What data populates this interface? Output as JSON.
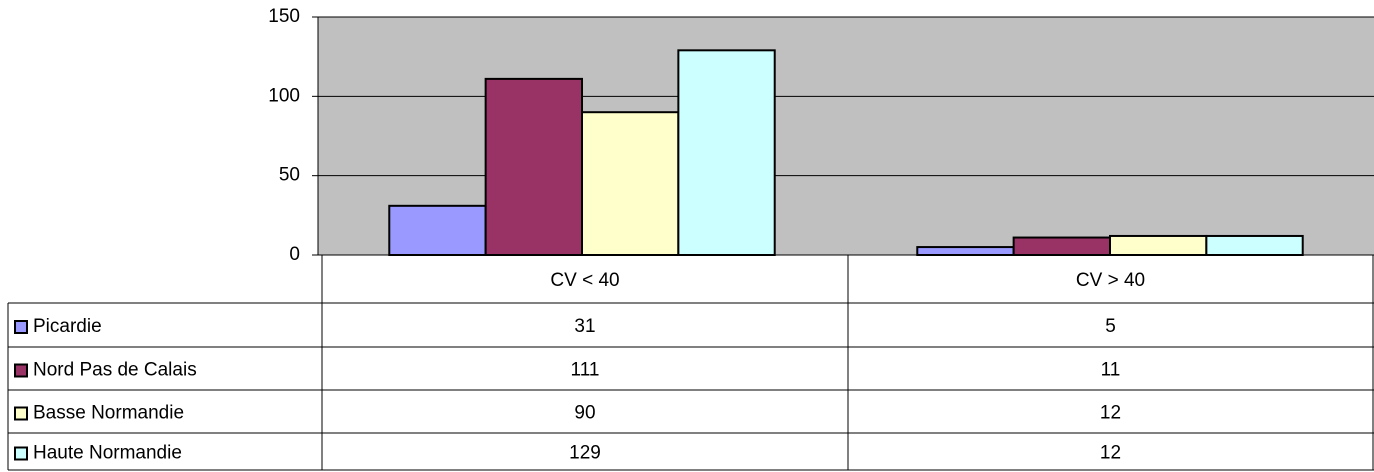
{
  "chart_data": {
    "type": "bar",
    "categories": [
      "CV < 40",
      "CV > 40"
    ],
    "series": [
      {
        "name": "Picardie",
        "color": "#9999ff",
        "values": [
          31,
          5
        ]
      },
      {
        "name": "Nord Pas de Calais",
        "color": "#993366",
        "values": [
          111,
          11
        ]
      },
      {
        "name": "Basse Normandie",
        "color": "#ffffcc",
        "values": [
          90,
          12
        ]
      },
      {
        "name": "Haute Normandie",
        "color": "#ccffff",
        "values": [
          129,
          12
        ]
      }
    ],
    "ylim": [
      0,
      150
    ],
    "yticks": [
      0,
      50,
      100,
      150
    ],
    "grid": true
  }
}
